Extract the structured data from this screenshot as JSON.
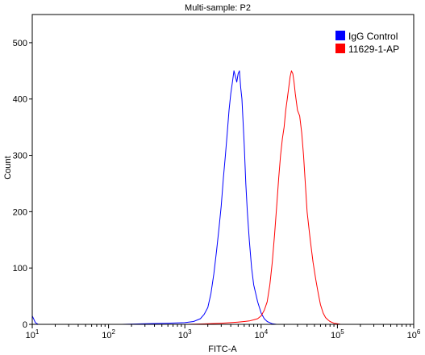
{
  "chart_data": {
    "type": "line",
    "title": "Multi-sample: P2",
    "xlabel": "FITC-A",
    "ylabel": "Count",
    "x_scale": "log",
    "xlim": [
      10,
      1000000
    ],
    "ylim": [
      0,
      550
    ],
    "x_ticks": [
      {
        "value": 10,
        "base": "10",
        "exp": "1"
      },
      {
        "value": 100,
        "base": "10",
        "exp": "2"
      },
      {
        "value": 1000,
        "base": "10",
        "exp": "3"
      },
      {
        "value": 10000,
        "base": "10",
        "exp": "4"
      },
      {
        "value": 100000,
        "base": "10",
        "exp": "5"
      },
      {
        "value": 1000000,
        "base": "10",
        "exp": "6"
      }
    ],
    "y_ticks": [
      {
        "value": 0,
        "label": "0"
      },
      {
        "value": 100,
        "label": "100"
      },
      {
        "value": 200,
        "label": "200"
      },
      {
        "value": 300,
        "label": "300"
      },
      {
        "value": 400,
        "label": "400"
      },
      {
        "value": 500,
        "label": "500"
      }
    ],
    "legend_position": "top-right",
    "grid": false,
    "series": [
      {
        "name": "IgG Control",
        "color": "#0000ff",
        "x": [
          10,
          11,
          12,
          30,
          150,
          300,
          600,
          1000,
          1300,
          1600,
          1800,
          2000,
          2200,
          2400,
          2600,
          2800,
          3000,
          3200,
          3400,
          3600,
          3800,
          4000,
          4200,
          4400,
          4600,
          4800,
          5000,
          5200,
          5400,
          5600,
          5800,
          6000,
          6300,
          6600,
          7000,
          7500,
          8000,
          9000,
          10000,
          11000,
          12000,
          13000,
          14000,
          16000,
          20000,
          40000,
          100000,
          1000000
        ],
        "y": [
          15,
          3,
          0,
          0,
          0,
          1,
          2,
          3,
          5,
          10,
          18,
          30,
          55,
          90,
          130,
          170,
          210,
          260,
          300,
          340,
          380,
          410,
          430,
          450,
          440,
          430,
          445,
          450,
          420,
          400,
          360,
          320,
          250,
          200,
          150,
          100,
          70,
          40,
          20,
          10,
          5,
          3,
          1,
          0,
          0,
          0,
          0,
          0
        ]
      },
      {
        "name": "11629-1-AP",
        "color": "#ff0000",
        "x": [
          10,
          1000,
          2000,
          3000,
          4000,
          5000,
          6000,
          7000,
          8000,
          9000,
          10000,
          11000,
          12000,
          13000,
          14000,
          15000,
          16000,
          17000,
          18000,
          19000,
          20000,
          21000,
          22000,
          23000,
          24000,
          25000,
          26000,
          27000,
          28000,
          30000,
          32000,
          34000,
          36000,
          38000,
          40000,
          44000,
          48000,
          52000,
          56000,
          60000,
          65000,
          70000,
          75000,
          80000,
          90000,
          100000,
          110000,
          1000000
        ],
        "y": [
          0,
          0,
          1,
          2,
          3,
          4,
          5,
          6,
          8,
          10,
          15,
          25,
          40,
          70,
          110,
          160,
          210,
          260,
          300,
          330,
          350,
          380,
          400,
          420,
          440,
          450,
          445,
          430,
          410,
          380,
          370,
          340,
          300,
          250,
          200,
          150,
          110,
          80,
          55,
          35,
          20,
          12,
          8,
          5,
          2,
          1,
          0,
          0
        ]
      }
    ]
  }
}
